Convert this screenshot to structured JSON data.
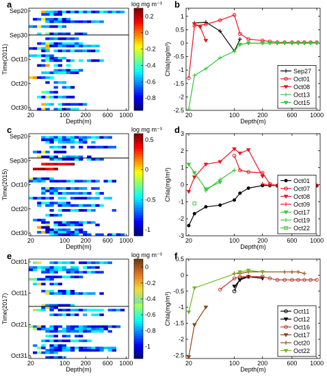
{
  "chart_data": [
    {
      "panel": "a",
      "type": "heatmap",
      "ylabel": "Time(2011)",
      "xlabel": "Depth(m)",
      "yticks": [
        "Sep20",
        "Sep30",
        "Oct10",
        "Oct20",
        "Oct30"
      ],
      "xticks": [
        "20",
        "100",
        "200",
        "600",
        "1000"
      ],
      "colorbar": {
        "label": "log mg m⁻³",
        "ticks": [
          "0.2",
          "0",
          "-0.2",
          "-0.4",
          "-0.6",
          "-0.8"
        ],
        "vmin": -0.95,
        "vmax": 0.3
      }
    },
    {
      "panel": "b",
      "type": "line",
      "ylabel": "Chla(mg/m³)",
      "xlabel": "Depth(m)",
      "xticks": [
        "20",
        "100",
        "200",
        "600",
        "1000"
      ],
      "yticks": [
        "-2.5",
        "-2",
        "-1.5",
        "-1",
        "-0.5",
        "0",
        "0.5",
        "1"
      ],
      "ylim": [
        -2.5,
        1.3
      ],
      "series": [
        {
          "name": "Sep27",
          "color": "#000000",
          "marker": "plus",
          "x": [
            30,
            50,
            75,
            100,
            120
          ],
          "y": [
            0.75,
            0.78,
            0.45,
            -0.3,
            0.15
          ]
        },
        {
          "name": "Oct01",
          "color": "#e8141e",
          "marker": "circle",
          "x": [
            20,
            30,
            50,
            75,
            100,
            120,
            150,
            200,
            300,
            400,
            500,
            600,
            700,
            800,
            900,
            1000
          ],
          "y": [
            -1.3,
            0.65,
            0.7,
            0.85,
            1.05,
            0.35,
            0.15,
            0.1,
            0.06,
            0.03,
            0.03,
            0.03,
            0.03,
            0.03,
            0.03,
            0.03
          ]
        },
        {
          "name": "Oct08",
          "color": "#e8141e",
          "marker": "tri-down",
          "x": [
            30,
            40,
            50
          ],
          "y": [
            0.72,
            0.6,
            0.1
          ]
        },
        {
          "name": "Oct13",
          "color": "#34c834",
          "marker": "plus",
          "x": [
            20,
            30,
            50,
            75,
            100,
            120,
            150,
            200,
            300,
            400,
            500,
            600,
            700,
            800,
            900,
            1000
          ],
          "y": [
            -2.45,
            -1.2,
            -0.95,
            -0.55,
            -0.3,
            -0.05,
            0.0,
            0.0,
            0.0,
            0.0,
            0.0,
            0.0,
            0.0,
            0.0,
            0.0,
            0.0
          ]
        },
        {
          "name": "Oct15",
          "color": "#34c834",
          "marker": "tri-down",
          "x": [
            120,
            150,
            200,
            300,
            400,
            500,
            600,
            700,
            800,
            900,
            1000
          ],
          "y": [
            -0.05,
            0.0,
            0.0,
            0.0,
            0.0,
            0.0,
            0.0,
            0.0,
            0.0,
            0.0,
            0.0
          ]
        }
      ]
    },
    {
      "panel": "c",
      "type": "heatmap",
      "ylabel": "Time(2015)",
      "xlabel": "Depth(m)",
      "yticks": [
        "Sep20",
        "Sep30",
        "Oct10",
        "Oct20",
        "Oct30"
      ],
      "xticks": [
        "20",
        "100",
        "200",
        "600",
        "1000"
      ],
      "colorbar": {
        "label": "log mg m⁻³",
        "ticks": [
          "0.5",
          "0",
          "-0.5",
          "-1"
        ],
        "vmin": -1.1,
        "vmax": 0.6
      }
    },
    {
      "panel": "d",
      "type": "line",
      "ylabel": "Chla(mg/m³)",
      "xlabel": "Depth(m)",
      "xticks": [
        "20",
        "100",
        "200",
        "600",
        "1000"
      ],
      "yticks": [
        "-3",
        "-2",
        "-1",
        "0",
        "1",
        "2",
        "3"
      ],
      "ylim": [
        -3,
        3
      ],
      "series": [
        {
          "name": "Oct01",
          "color": "#000000",
          "marker": "dot",
          "x": [
            20,
            30,
            50,
            75,
            100,
            120,
            150,
            200,
            300,
            400,
            500,
            600,
            700,
            800,
            900,
            1000
          ],
          "y": [
            -2.4,
            -1.7,
            -1.3,
            -1.2,
            -0.9,
            -0.5,
            -0.2,
            -0.05,
            -0.05,
            -0.05,
            -0.05,
            -0.05,
            -0.05,
            -0.05,
            -0.05,
            -0.05
          ]
        },
        {
          "name": "Oct07",
          "color": "#e8141e",
          "marker": "circle",
          "x": [
            100,
            120,
            150,
            200,
            300,
            400,
            500,
            600,
            700,
            800,
            900,
            1000
          ],
          "y": [
            1.7,
            0.85,
            0.75,
            0.7,
            0.05,
            -0.05,
            -0.05,
            -0.05,
            -0.05,
            -0.05,
            -0.05,
            -0.05
          ]
        },
        {
          "name": "Oct08",
          "color": "#e8141e",
          "marker": "tri-down",
          "x": [
            20,
            30,
            50,
            75,
            100,
            120,
            150,
            200
          ],
          "y": [
            -0.4,
            0.45,
            1.2,
            1.35,
            2.1,
            1.85,
            2.05,
            0.5
          ]
        },
        {
          "name": "Oct09",
          "color": "#e8141e",
          "marker": "plus",
          "x": [
            200,
            300,
            400,
            500,
            600,
            700,
            800,
            900,
            1000
          ],
          "y": [
            0.05,
            -0.05,
            -0.05,
            -0.05,
            -0.05,
            -0.05,
            -0.05,
            -0.05,
            -0.05
          ]
        },
        {
          "name": "Oct17",
          "color": "#34c834",
          "marker": "tri-down",
          "x": [
            20,
            30,
            50,
            75
          ],
          "y": [
            1.2,
            0.7,
            -0.25,
            0.15
          ]
        },
        {
          "name": "Oct19",
          "color": "#34c834",
          "marker": "plus",
          "x": [
            50,
            75,
            100
          ],
          "y": [
            -0.35,
            0.3,
            0.85
          ]
        },
        {
          "name": "Oct22",
          "color": "#34c834",
          "marker": "square",
          "x": [
            30
          ],
          "y": [
            -1.1
          ]
        }
      ]
    },
    {
      "panel": "e",
      "type": "heatmap",
      "ylabel": "Time(2017)",
      "xlabel": "Depth(m)",
      "yticks": [
        "Oct01",
        "Oct11",
        "Oct21",
        "Oct31"
      ],
      "xticks": [
        "20",
        "100",
        "200",
        "600",
        "1000"
      ],
      "colorbar": {
        "label": "log mg m⁻³",
        "ticks": [
          "0",
          "-0.2",
          "-0.4",
          "-0.6",
          "-0.8",
          "-1"
        ],
        "vmin": -1.15,
        "vmax": 0.1
      }
    },
    {
      "panel": "f",
      "type": "line",
      "ylabel": "Chla(mg/m³)",
      "xlabel": "Depth(m)",
      "xticks": [
        "20",
        "100",
        "200",
        "600",
        "1000"
      ],
      "yticks": [
        "-2.5",
        "-2",
        "-1.5",
        "-1",
        "-0.5",
        "0",
        "0.5"
      ],
      "ylim": [
        -2.6,
        0.5
      ],
      "series": [
        {
          "name": "Oct11",
          "color": "#000000",
          "marker": "circle",
          "x": [
            100,
            120,
            150,
            200
          ],
          "y": [
            -0.5,
            -0.1,
            -0.05,
            -0.05
          ]
        },
        {
          "name": "Oct12",
          "color": "#000000",
          "marker": "tri-down",
          "x": [
            100,
            120,
            150,
            200
          ],
          "y": [
            -0.35,
            -0.15,
            -0.05,
            -0.1
          ]
        },
        {
          "name": "Oct16",
          "color": "#c0392b",
          "marker": "circle",
          "x": [
            75,
            100,
            120,
            150,
            200,
            300,
            400,
            500,
            600,
            700,
            800,
            900,
            1000
          ],
          "y": [
            -0.45,
            -0.1,
            -0.05,
            -0.05,
            -0.05,
            -0.1,
            -0.15,
            -0.15,
            -0.15,
            -0.15,
            -0.15,
            -0.15,
            -0.15
          ]
        },
        {
          "name": "Oct17",
          "color": "#8b4513",
          "marker": "tri-down",
          "x": [
            20,
            30,
            50
          ],
          "y": [
            -2.55,
            -1.55,
            -1.0
          ]
        },
        {
          "name": "Oct20",
          "color": "#8b4513",
          "marker": "plus",
          "x": [
            100,
            120,
            150,
            200,
            500,
            600,
            700,
            800
          ],
          "y": [
            0.05,
            0.05,
            0.1,
            0.1,
            0.1,
            0.1,
            0.1,
            0.05
          ]
        },
        {
          "name": "Oct22",
          "color": "#6cbe1e",
          "marker": "tri-down",
          "x": [
            20,
            30,
            120,
            150,
            200
          ],
          "y": [
            -1.15,
            -0.4,
            0.1,
            0.15,
            0.1
          ]
        }
      ]
    }
  ]
}
